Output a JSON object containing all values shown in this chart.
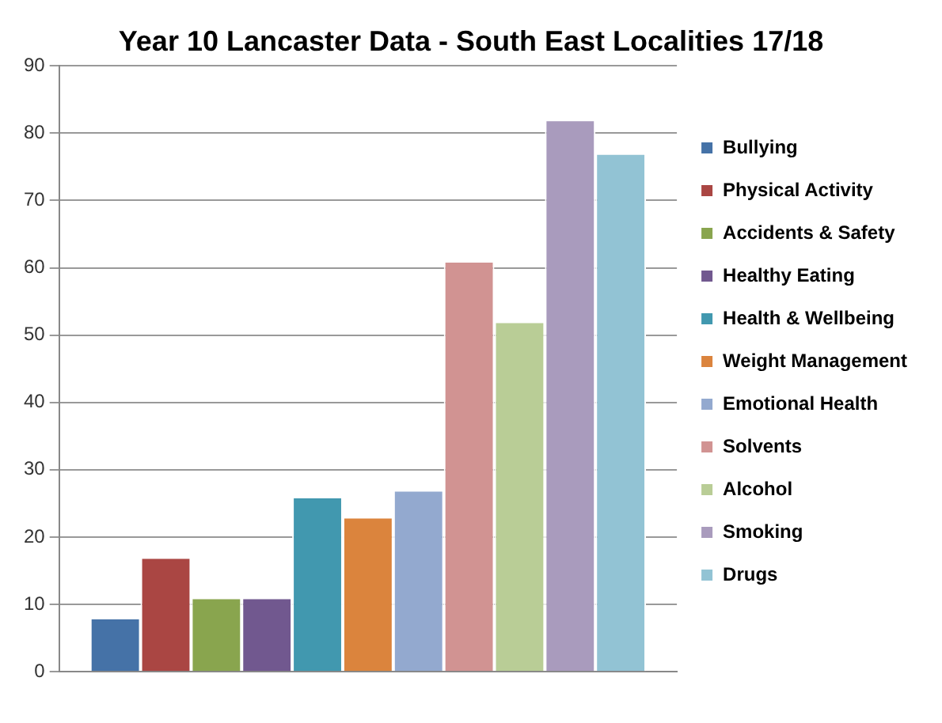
{
  "chart_data": {
    "type": "bar",
    "title": "Year 10 Lancaster Data - South East Localities 17/18",
    "categories": [
      null
    ],
    "series": [
      {
        "name": "Bullying",
        "color": "#4572a7",
        "values": [
          8
        ]
      },
      {
        "name": "Physical Activity",
        "color": "#aa4643",
        "values": [
          17
        ]
      },
      {
        "name": "Accidents & Safety",
        "color": "#89a54e",
        "values": [
          11
        ]
      },
      {
        "name": "Healthy Eating",
        "color": "#71588f",
        "values": [
          11
        ]
      },
      {
        "name": "Health & Wellbeing",
        "color": "#4198af",
        "values": [
          26
        ]
      },
      {
        "name": "Weight Management",
        "color": "#db843d",
        "values": [
          23
        ]
      },
      {
        "name": "Emotional Health",
        "color": "#93a9cf",
        "values": [
          27
        ]
      },
      {
        "name": "Solvents",
        "color": "#d19392",
        "values": [
          61
        ]
      },
      {
        "name": "Alcohol",
        "color": "#b9cd96",
        "values": [
          52
        ]
      },
      {
        "name": "Smoking",
        "color": "#a99bbd",
        "values": [
          82
        ]
      },
      {
        "name": "Drugs",
        "color": "#92c3d4",
        "values": [
          77
        ]
      }
    ],
    "ylim": [
      0,
      90
    ],
    "yticks": [
      0,
      10,
      20,
      30,
      40,
      50,
      60,
      70,
      80,
      90
    ],
    "grid": "y",
    "legend": "right"
  }
}
